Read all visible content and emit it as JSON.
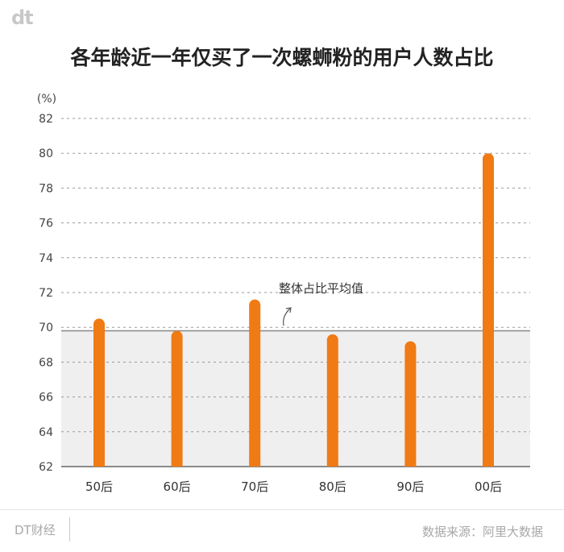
{
  "header": {
    "logo_text": "dt",
    "title": "各年龄近一年仅买了一次螺蛳粉的用户人数占比"
  },
  "chart_data": {
    "type": "bar",
    "title": "各年龄近一年仅买了一次螺蛳粉的用户人数占比",
    "ylabel": "(%)",
    "xlabel": "",
    "ylim": [
      62,
      82
    ],
    "yticks": [
      62,
      64,
      66,
      68,
      70,
      72,
      74,
      76,
      78,
      80,
      82
    ],
    "categories": [
      "50后",
      "60后",
      "70后",
      "80后",
      "90后",
      "00后"
    ],
    "values": [
      70.5,
      69.8,
      71.6,
      69.6,
      69.2,
      80.0
    ],
    "bar_color": "#f07a14",
    "grid": true,
    "reference_line": {
      "value": 69.8,
      "label": "整体占比平均值",
      "fill_below": "#efefef"
    }
  },
  "footer": {
    "brand": "DT财经",
    "source": "数据来源：阿里大数据"
  }
}
